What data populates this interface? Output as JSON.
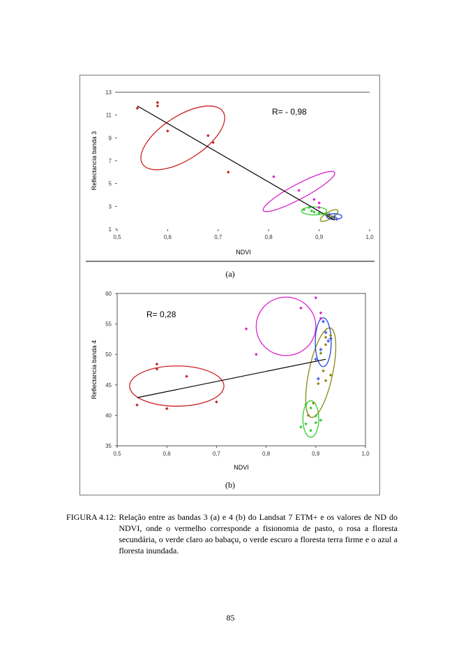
{
  "chart_data": [
    {
      "type": "scatter",
      "panel_label": "(a)",
      "xlabel": "NDVI",
      "ylabel": "Reflectancia banda 3",
      "annotation": "R= - 0,98",
      "xlim": [
        0.5,
        1.0
      ],
      "ylim": [
        1,
        13
      ],
      "x_ticks": [
        "0,5",
        "0,6",
        "0,7",
        "0,8",
        "0,9",
        "1,0"
      ],
      "y_ticks": [
        "13",
        "11",
        "9",
        "7",
        "5",
        "3",
        "1"
      ],
      "trendline": [
        [
          0.54,
          11.8
        ],
        [
          0.93,
          1.8
        ]
      ],
      "series": [
        {
          "group": "pasto",
          "color": "#cc2222",
          "points": [
            [
              0.54,
              11.6
            ],
            [
              0.58,
              12.1
            ],
            [
              0.58,
              11.8
            ],
            [
              0.6,
              9.6
            ],
            [
              0.68,
              9.2
            ],
            [
              0.69,
              8.6
            ],
            [
              0.72,
              6.0
            ]
          ]
        },
        {
          "group": "floresta-secundaria",
          "color": "#dd22cc",
          "points": [
            [
              0.81,
              5.6
            ],
            [
              0.86,
              4.4
            ],
            [
              0.9,
              3.3
            ],
            [
              0.9,
              2.9
            ],
            [
              0.89,
              3.6
            ]
          ]
        },
        {
          "group": "babacu",
          "color": "#33cc33",
          "points": [
            [
              0.87,
              2.7
            ],
            [
              0.88,
              2.9
            ],
            [
              0.89,
              2.5
            ],
            [
              0.9,
              2.4
            ],
            [
              0.91,
              2.3
            ],
            [
              0.885,
              2.6
            ]
          ]
        },
        {
          "group": "terra-firme",
          "color": "#888811",
          "points": [
            [
              0.92,
              2.2
            ],
            [
              0.925,
              2.1
            ],
            [
              0.93,
              2.0
            ],
            [
              0.915,
              2.3
            ]
          ]
        },
        {
          "group": "inundada",
          "color": "#2244dd",
          "points": [
            [
              0.92,
              2.3
            ],
            [
              0.93,
              2.1
            ],
            [
              0.935,
              1.9
            ]
          ]
        }
      ],
      "ellipses": [
        {
          "group": "pasto",
          "color": "#cc2222",
          "cx": 0.63,
          "cy": 9.0,
          "rx": 0.095,
          "ry": 1.9,
          "angle": -33
        },
        {
          "group": "floresta-secundaria",
          "color": "#dd22cc",
          "cx": 0.86,
          "cy": 4.3,
          "rx": 0.08,
          "ry": 0.65,
          "angle": -28
        },
        {
          "group": "babacu",
          "color": "#33cc33",
          "cx": 0.89,
          "cy": 2.6,
          "rx": 0.025,
          "ry": 0.35,
          "angle": 0
        },
        {
          "group": "terra-firme",
          "color": "#888811",
          "cx": 0.92,
          "cy": 2.2,
          "rx": 0.02,
          "ry": 0.3,
          "angle": -30
        },
        {
          "group": "inundada",
          "color": "#2244dd",
          "cx": 0.93,
          "cy": 2.1,
          "rx": 0.015,
          "ry": 0.25,
          "angle": 0
        }
      ]
    },
    {
      "type": "scatter",
      "panel_label": "(b)",
      "xlabel": "NDVI",
      "ylabel": "Reflectancia banda 4",
      "annotation": "R= 0,28",
      "xlim": [
        0.5,
        1.0
      ],
      "ylim": [
        35,
        60
      ],
      "x_ticks": [
        "0,5",
        "0,6",
        "0,7",
        "0,8",
        "0,9",
        "1,0"
      ],
      "y_ticks": [
        "60",
        "55",
        "50",
        "45",
        "40",
        "35"
      ],
      "trendline": [
        [
          0.54,
          42.9
        ],
        [
          0.92,
          49.2
        ]
      ],
      "series": [
        {
          "group": "pasto",
          "color": "#cc2222",
          "points": [
            [
              0.54,
              41.7
            ],
            [
              0.58,
              48.4
            ],
            [
              0.58,
              47.6
            ],
            [
              0.6,
              41.1
            ],
            [
              0.64,
              46.4
            ],
            [
              0.7,
              42.2
            ]
          ]
        },
        {
          "group": "floresta-secundaria",
          "color": "#dd22cc",
          "points": [
            [
              0.76,
              54.2
            ],
            [
              0.87,
              57.6
            ],
            [
              0.9,
              59.3
            ],
            [
              0.91,
              56.8
            ],
            [
              0.91,
              55.9
            ],
            [
              0.78,
              50.0
            ]
          ]
        },
        {
          "group": "babacu",
          "color": "#33cc33",
          "points": [
            [
              0.88,
              41.8
            ],
            [
              0.89,
              41.2
            ],
            [
              0.9,
              39.9
            ],
            [
              0.9,
              38.8
            ],
            [
              0.88,
              38.6
            ],
            [
              0.89,
              37.5
            ],
            [
              0.87,
              38.1
            ],
            [
              0.91,
              39.2
            ]
          ]
        },
        {
          "group": "terra-firme",
          "color": "#888811",
          "points": [
            [
              0.92,
              52.8
            ],
            [
              0.93,
              53.1
            ],
            [
              0.92,
              51.6
            ],
            [
              0.91,
              50.2
            ],
            [
              0.915,
              47.3
            ],
            [
              0.92,
              45.7
            ],
            [
              0.905,
              45.2
            ],
            [
              0.93,
              46.6
            ],
            [
              0.895,
              42.0
            ],
            [
              0.885,
              40.0
            ]
          ]
        },
        {
          "group": "inundada",
          "color": "#2244dd",
          "points": [
            [
              0.915,
              55.4
            ],
            [
              0.92,
              53.6
            ],
            [
              0.925,
              52.2
            ],
            [
              0.91,
              50.8
            ],
            [
              0.9,
              49.2
            ],
            [
              0.905,
              46.0
            ],
            [
              0.93,
              52.6
            ]
          ]
        }
      ],
      "ellipses": [
        {
          "group": "pasto",
          "color": "#cc2222",
          "cx": 0.62,
          "cy": 44.8,
          "rx": 0.095,
          "ry": 3.3,
          "angle": 0
        },
        {
          "group": "floresta-secundaria",
          "color": "#dd22cc",
          "cx": 0.84,
          "cy": 54.6,
          "rx": 0.06,
          "ry": 4.8,
          "angle": 0
        },
        {
          "group": "babacu",
          "color": "#33cc33",
          "cx": 0.89,
          "cy": 39.4,
          "rx": 0.016,
          "ry": 3.0,
          "angle": 0
        },
        {
          "group": "terra-firme",
          "color": "#888811",
          "cx": 0.91,
          "cy": 47.0,
          "rx": 0.024,
          "ry": 7.5,
          "angle": 12
        },
        {
          "group": "inundada",
          "color": "#2244dd",
          "cx": 0.915,
          "cy": 52.0,
          "rx": 0.016,
          "ry": 4.0,
          "angle": 0
        }
      ]
    }
  ],
  "caption": {
    "label": "FIGURA 4.12:",
    "text": "Relação entre as bandas 3 (a) e 4 (b) do Landsat 7 ETM+ e os valores de ND do NDVI, onde o vermelho corresponde a fisionomia de pasto, o rosa a floresta secundária, o verde claro ao babaçu, o verde escuro a floresta terra firme e o azul a floresta inundada."
  },
  "page_number": "85"
}
